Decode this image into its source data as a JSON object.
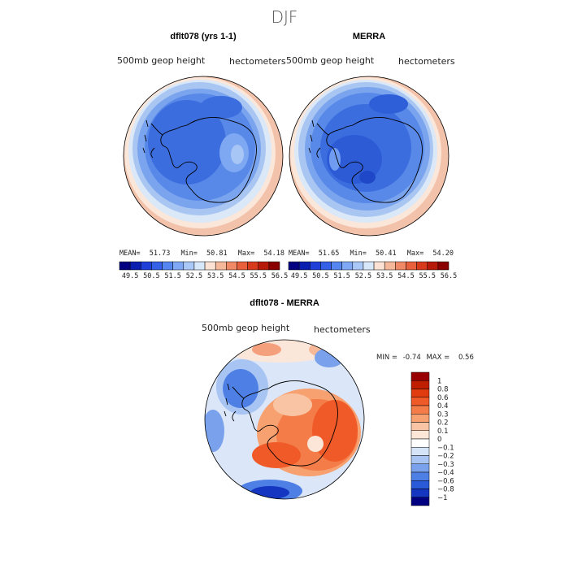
{
  "figure": {
    "season": "DJF",
    "colors": {
      "ocean_text": "#222222",
      "coast": "#000000",
      "outline": "#000000"
    }
  },
  "panels": [
    {
      "title": "dflt078 (yrs 1-1)",
      "variable": "500mb geop height",
      "units": "hectometers",
      "stats": {
        "mean_label": "MEAN=",
        "mean": "51.73",
        "min_label": "Min=",
        "min": "50.81",
        "max_label": "Max=",
        "max": "54.18"
      }
    },
    {
      "title": "MERRA",
      "variable": "500mb geop height",
      "units": "hectometers",
      "stats": {
        "mean_label": "MEAN=",
        "mean": "51.65",
        "min_label": "Min=",
        "min": "50.41",
        "max_label": "Max=",
        "max": "54.20"
      }
    }
  ],
  "colorbar_abs": {
    "levels": [
      "49.5",
      "50.5",
      "51.5",
      "52.5",
      "53.5",
      "54.5",
      "55.5",
      "56.5"
    ],
    "colors": [
      "#000080",
      "#0a1fb0",
      "#1f3fd8",
      "#3560e8",
      "#5585f0",
      "#7fa8f5",
      "#a9c8f8",
      "#d8e8fb",
      "#fbe2d4",
      "#f6b89a",
      "#f08a66",
      "#e8603c",
      "#d83a1c",
      "#b81a0a",
      "#8a0000"
    ]
  },
  "diff_panel": {
    "title": "dflt078 - MERRA",
    "variable": "500mb geop height",
    "units": "hectometers",
    "min_label": "MIN =",
    "min": "-0.74",
    "max_label": "MAX =",
    "max": "0.56"
  },
  "colorbar_diff": {
    "labels": [
      "1",
      "0.8",
      "0.6",
      "0.4",
      "0.3",
      "0.2",
      "0.1",
      "0",
      "−0.1",
      "−0.2",
      "−0.3",
      "−0.4",
      "−0.6",
      "−0.8",
      "−1"
    ],
    "colors": [
      "#990000",
      "#c01e00",
      "#e03c10",
      "#f05a28",
      "#f47c48",
      "#f7a070",
      "#f9c4a4",
      "#fbe6d8",
      "#ffffff",
      "#d6e4f8",
      "#a8c4f2",
      "#7aa2ec",
      "#4e7fe4",
      "#2a5ad8",
      "#1436c0",
      "#000080"
    ]
  },
  "chart_data": {
    "type": "heatmap",
    "title": "DJF",
    "panels": [
      {
        "name": "dflt078 (yrs 1-1)",
        "mean": 51.73,
        "min": 50.81,
        "max": 54.18
      },
      {
        "name": "MERRA",
        "mean": 51.65,
        "min": 50.41,
        "max": 54.2
      },
      {
        "name": "dflt078 - MERRA",
        "min": -0.74,
        "max": 0.56
      }
    ],
    "abs_levels": [
      49.5,
      50.5,
      51.5,
      52.5,
      53.5,
      54.5,
      55.5,
      56.5
    ],
    "diff_levels": [
      -1,
      -0.8,
      -0.6,
      -0.4,
      -0.3,
      -0.2,
      -0.1,
      0,
      0.1,
      0.2,
      0.3,
      0.4,
      0.6,
      0.8,
      1
    ]
  }
}
